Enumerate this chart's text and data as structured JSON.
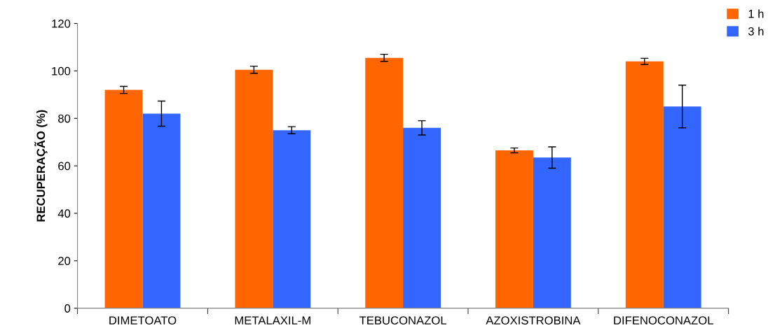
{
  "chart_data": {
    "type": "bar",
    "ylabel": "RECUPERAÇÃO (%)",
    "categories": [
      "DIMETOATO",
      "METALAXIL-M",
      "TEBUCONAZOL",
      "AZOXISTROBINA",
      "DIFENOCONAZOL"
    ],
    "series": [
      {
        "name": "1 h",
        "color": "#ff6600",
        "values": [
          92,
          100.5,
          105.5,
          66.5,
          104
        ],
        "errors": [
          1.5,
          1.5,
          1.5,
          1,
          1.3
        ]
      },
      {
        "name": "3 h",
        "color": "#3366ff",
        "values": [
          82,
          75,
          76,
          63.5,
          85
        ],
        "errors": [
          5.3,
          1.5,
          3,
          4.5,
          9
        ]
      }
    ],
    "ylim": [
      0,
      120
    ],
    "yticks": [
      0,
      20,
      40,
      60,
      80,
      100,
      120
    ],
    "grid": false,
    "legend": "top right"
  }
}
